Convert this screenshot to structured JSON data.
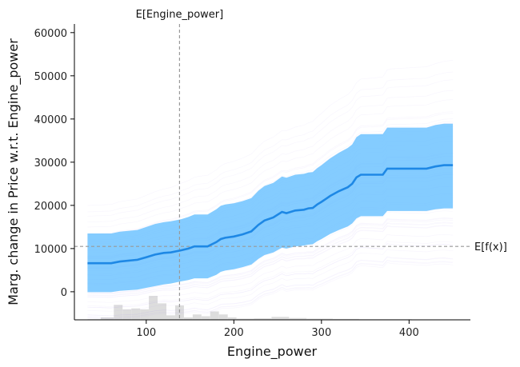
{
  "chart_data": {
    "type": "line",
    "title": "",
    "xlabel": "Engine_power",
    "ylabel": "Marg. change in Price w.r.t. Engine_power",
    "xlim": [
      18,
      470
    ],
    "ylim": [
      -6500,
      62000
    ],
    "xticks": [
      100,
      200,
      300,
      400
    ],
    "yticks": [
      0,
      10000,
      20000,
      30000,
      40000,
      50000,
      60000
    ],
    "grid": false,
    "legend": "none",
    "colors": {
      "mean_line": "#1e88e5",
      "ice_band": "#6fc3ff",
      "ice_lines": "#a58cf2",
      "ref_lines": "#999999",
      "histogram": "#dddddd"
    },
    "reference_lines": {
      "expected_feature": {
        "label": "E[Engine_power]",
        "x": 138
      },
      "expected_prediction": {
        "label": "E[f(x)]",
        "y": 10500
      }
    },
    "series": [
      {
        "x": [
          33,
          60,
          70,
          90,
          100,
          110,
          120,
          128,
          135,
          140,
          148,
          155,
          160,
          170,
          180,
          185,
          190,
          200,
          210,
          220,
          228,
          235,
          245,
          255,
          260,
          270,
          280,
          285,
          290,
          295,
          300,
          305,
          310,
          320,
          330,
          335,
          340,
          345,
          360,
          370,
          375,
          380,
          400,
          420,
          430,
          440,
          450
        ],
        "values": [
          6600,
          6600,
          7000,
          7400,
          8000,
          8600,
          9000,
          9100,
          9400,
          9600,
          10000,
          10500,
          10500,
          10500,
          11500,
          12200,
          12500,
          12800,
          13300,
          14000,
          15500,
          16500,
          17200,
          18500,
          18200,
          18800,
          19000,
          19300,
          19400,
          20200,
          20800,
          21500,
          22200,
          23300,
          24200,
          25000,
          26500,
          27100,
          27100,
          27100,
          28500,
          28500,
          28500,
          28500,
          29000,
          29300,
          29300
        ],
        "band_low": [
          -100,
          -100,
          200,
          500,
          900,
          1300,
          1700,
          1900,
          2200,
          2400,
          2700,
          3100,
          3100,
          3100,
          3900,
          4600,
          4900,
          5200,
          5700,
          6300,
          7600,
          8500,
          9100,
          10200,
          10000,
          10500,
          10700,
          10900,
          11000,
          11700,
          12200,
          12800,
          13400,
          14300,
          15100,
          15800,
          17000,
          17500,
          17500,
          17500,
          18700,
          18700,
          18700,
          18700,
          19100,
          19300,
          19300
        ],
        "band_high": [
          13500,
          13500,
          13900,
          14300,
          15000,
          15700,
          16100,
          16300,
          16600,
          16800,
          17300,
          17900,
          17900,
          17900,
          19100,
          19900,
          20200,
          20500,
          21000,
          21700,
          23400,
          24500,
          25200,
          26700,
          26400,
          27100,
          27300,
          27600,
          27700,
          28600,
          29300,
          30100,
          30900,
          32200,
          33300,
          34100,
          35800,
          36500,
          36500,
          36500,
          38000,
          38000,
          38000,
          38000,
          38600,
          38900,
          38900
        ]
      }
    ],
    "histogram": {
      "bin_edges": [
        33,
        48,
        63,
        73,
        83,
        93,
        103,
        113,
        123,
        133,
        143,
        153,
        163,
        173,
        183,
        193,
        203,
        223,
        243,
        263,
        283,
        313,
        343,
        373,
        403,
        433,
        450
      ],
      "counts": [
        2,
        8,
        50,
        35,
        38,
        35,
        80,
        55,
        15,
        48,
        8,
        18,
        12,
        28,
        18,
        8,
        4,
        5,
        10,
        6,
        4,
        3,
        2,
        2,
        1,
        1
      ]
    }
  }
}
